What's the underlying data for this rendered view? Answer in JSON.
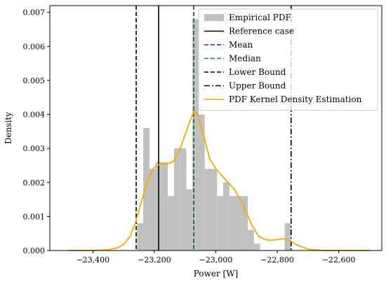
{
  "chart_data": {
    "type": "histogram",
    "title": "",
    "xlabel": "Power [W]",
    "ylabel": "Density",
    "xlim": [
      -23540,
      -22460
    ],
    "ylim": [
      0,
      0.0072
    ],
    "x_ticks": [
      -23400,
      -23200,
      -23000,
      -22800,
      -22600
    ],
    "x_tick_labels": [
      "−23,400",
      "−23,200",
      "−23,000",
      "−22,800",
      "−22,600"
    ],
    "y_ticks": [
      0,
      0.001,
      0.002,
      0.003,
      0.004,
      0.005,
      0.006,
      0.007
    ],
    "y_tick_labels": [
      "0.000",
      "0.001",
      "0.002",
      "0.003",
      "0.004",
      "0.005",
      "0.006",
      "0.007"
    ],
    "grid": false,
    "legend_position": "top-right",
    "histogram": {
      "name": "Empirical PDF",
      "color": "#c0c0c0",
      "bins": [
        {
          "x0": -23256,
          "x1": -23236,
          "density": 0.0008
        },
        {
          "x0": -23236,
          "x1": -23216,
          "density": 0.0036
        },
        {
          "x0": -23216,
          "x1": -23196,
          "density": 0.0024
        },
        {
          "x0": -23196,
          "x1": -23176,
          "density": 0.0026
        },
        {
          "x0": -23176,
          "x1": -23156,
          "density": 0.0026
        },
        {
          "x0": -23156,
          "x1": -23136,
          "density": 0.0016
        },
        {
          "x0": -23136,
          "x1": -23116,
          "density": 0.003
        },
        {
          "x0": -23116,
          "x1": -23096,
          "density": 0.003
        },
        {
          "x0": -23096,
          "x1": -23076,
          "density": 0.0018
        },
        {
          "x0": -23076,
          "x1": -23056,
          "density": 0.0068
        },
        {
          "x0": -23056,
          "x1": -23036,
          "density": 0.004
        },
        {
          "x0": -23036,
          "x1": -23016,
          "density": 0.0024
        },
        {
          "x0": -23016,
          "x1": -22996,
          "density": 0.0024
        },
        {
          "x0": -22996,
          "x1": -22976,
          "density": 0.0016
        },
        {
          "x0": -22976,
          "x1": -22956,
          "density": 0.002
        },
        {
          "x0": -22956,
          "x1": -22936,
          "density": 0.0016
        },
        {
          "x0": -22936,
          "x1": -22916,
          "density": 0.0016
        },
        {
          "x0": -22916,
          "x1": -22896,
          "density": 0.0016
        },
        {
          "x0": -22896,
          "x1": -22876,
          "density": 0.0006
        },
        {
          "x0": -22876,
          "x1": -22856,
          "density": 0.0002
        },
        {
          "x0": -22776,
          "x1": -22756,
          "density": 0.0008
        }
      ]
    },
    "vlines": [
      {
        "name": "Reference case",
        "x": -23186,
        "color": "#000000",
        "style": "solid"
      },
      {
        "name": "Mean",
        "x": -23072,
        "color": "#1f1fd6",
        "style": "dashed"
      },
      {
        "name": "Median",
        "x": -23072,
        "color": "#1a7a2a",
        "style": "dashed"
      },
      {
        "name": "Lower Bound",
        "x": -23259,
        "color": "#000000",
        "style": "dashed"
      },
      {
        "name": "Upper Bound",
        "x": -22755,
        "color": "#000000",
        "style": "dashdot"
      }
    ],
    "kde": {
      "name": "PDF Kernel Density Estimation",
      "color": "#ffa500",
      "x": [
        -23480,
        -23400,
        -23350,
        -23320,
        -23300,
        -23280,
        -23260,
        -23240,
        -23220,
        -23200,
        -23180,
        -23160,
        -23140,
        -23120,
        -23100,
        -23080,
        -23070,
        -23060,
        -23040,
        -23020,
        -23000,
        -22980,
        -22960,
        -22940,
        -22920,
        -22900,
        -22880,
        -22860,
        -22840,
        -22820,
        -22800,
        -22780,
        -22760,
        -22740,
        -22700,
        -22650,
        -22600,
        -22550,
        -22500
      ],
      "y": [
        0,
        0,
        2e-05,
        8e-05,
        0.00018,
        0.0004,
        0.00085,
        0.0015,
        0.0021,
        0.00245,
        0.00255,
        0.00255,
        0.0026,
        0.0029,
        0.0034,
        0.0039,
        0.0041,
        0.004,
        0.0034,
        0.0027,
        0.0024,
        0.0022,
        0.002,
        0.0018,
        0.0015,
        0.0011,
        0.0007,
        0.00042,
        0.00032,
        0.0003,
        0.00032,
        0.00035,
        0.0003,
        0.00018,
        4e-05,
        0,
        0,
        0,
        0
      ]
    }
  }
}
